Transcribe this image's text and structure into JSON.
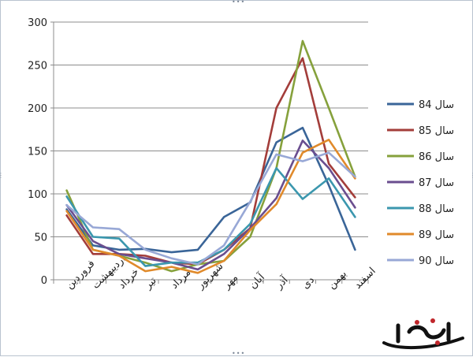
{
  "chart_data": {
    "type": "line",
    "categories": [
      "فروردین",
      "اردیبهشت",
      "خرداد",
      "تیر",
      "مرداد",
      "شهریور",
      "مهر",
      "آبان",
      "آذر",
      "دی",
      "بهمن",
      "اسفند"
    ],
    "ylim": [
      0,
      300
    ],
    "yticks": [
      0,
      50,
      100,
      150,
      200,
      250,
      300
    ],
    "grid": true,
    "legend_position": "right",
    "series": [
      {
        "name": "سال 84",
        "color": "#3A6598",
        "values": [
          82,
          40,
          35,
          36,
          32,
          35,
          73,
          90,
          160,
          177,
          110,
          35
        ]
      },
      {
        "name": "سال 85",
        "color": "#A33D3A",
        "values": [
          75,
          30,
          30,
          28,
          20,
          18,
          35,
          60,
          200,
          258,
          135,
          96
        ]
      },
      {
        "name": "سال 86",
        "color": "#86A13C",
        "values": [
          104,
          35,
          28,
          20,
          10,
          18,
          22,
          50,
          130,
          278,
          200,
          120
        ]
      },
      {
        "name": "سال 87",
        "color": "#6A4E8F",
        "values": [
          87,
          45,
          30,
          25,
          20,
          12,
          30,
          60,
          95,
          162,
          130,
          84
        ]
      },
      {
        "name": "سال 88",
        "color": "#3B97AE",
        "values": [
          97,
          50,
          48,
          16,
          20,
          20,
          35,
          65,
          130,
          94,
          118,
          73
        ]
      },
      {
        "name": "سال 89",
        "color": "#E08A2B",
        "values": [
          80,
          35,
          28,
          10,
          15,
          8,
          22,
          58,
          88,
          148,
          163,
          118
        ]
      },
      {
        "name": "سال 90",
        "color": "#98A8D6",
        "values": [
          87,
          61,
          59,
          35,
          25,
          18,
          40,
          91,
          146,
          138,
          148,
          120
        ]
      }
    ]
  },
  "logo": {
    "text": "تابناک",
    "icon": "tabnak-logo-icon"
  }
}
